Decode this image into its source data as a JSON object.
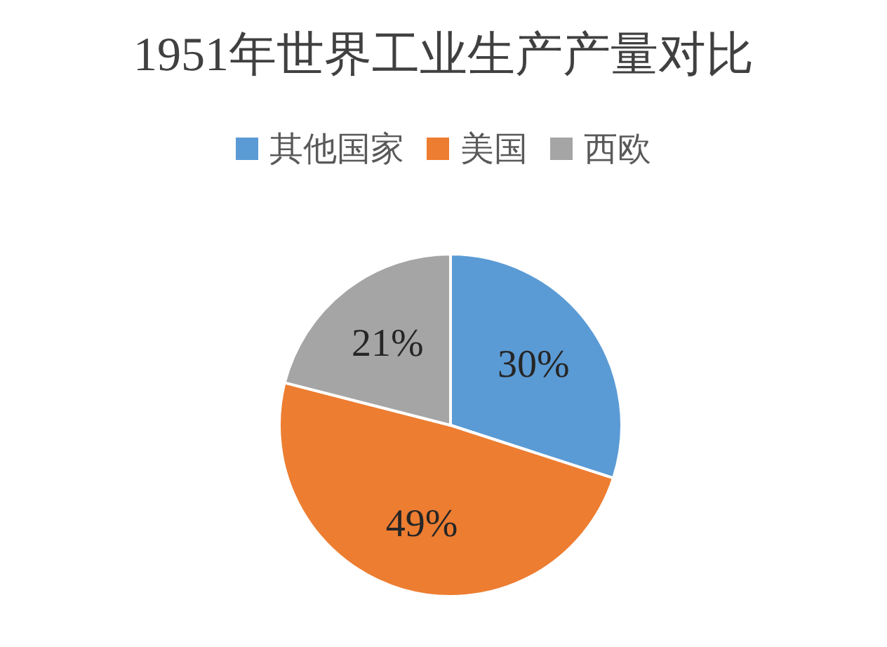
{
  "chart_data": {
    "type": "pie",
    "title": "1951年世界工业生产产量对比",
    "categories": [
      "其他国家",
      "美国",
      "西欧"
    ],
    "values": [
      30,
      49,
      21
    ],
    "colors": [
      "#5b9bd5",
      "#ed7d31",
      "#a5a5a5"
    ],
    "value_labels": [
      "30%",
      "49%",
      "21%"
    ],
    "legend": "top"
  }
}
